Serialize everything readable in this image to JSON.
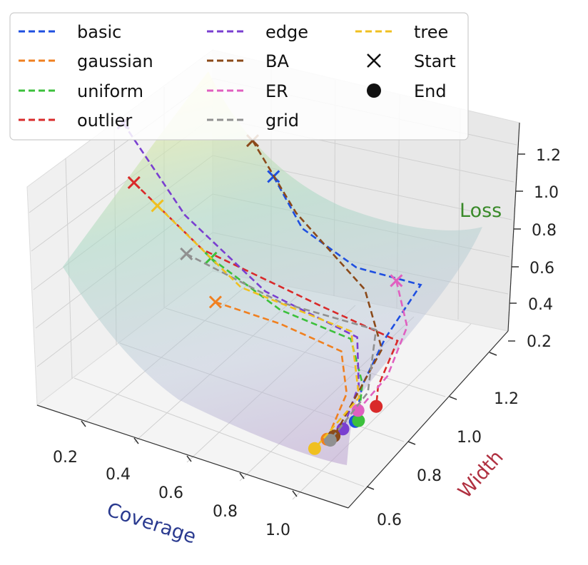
{
  "chart_data": {
    "type": "3d-line-on-surface",
    "xlabel": "Coverage",
    "ylabel": "Width",
    "zlabel": "Loss",
    "xticks": [
      "0.2",
      "0.4",
      "0.6",
      "0.8",
      "1.0"
    ],
    "yticks": [
      "0.6",
      "0.8",
      "1.0",
      "1.2"
    ],
    "zticks": [
      "0.2",
      "0.4",
      "0.6",
      "0.8",
      "1.0",
      "1.2"
    ],
    "xlim": [
      0.1,
      1.1
    ],
    "ylim": [
      0.5,
      1.35
    ],
    "zlim": [
      0.2,
      1.3
    ],
    "legend_position": "top-left",
    "legend_columns": 3,
    "colors": {
      "xlabel": "#2a3a8f",
      "ylabel": "#b03040",
      "zlabel": "#3a8a2a",
      "surface_top": "#f2f0a0",
      "surface_mid": "#a9d8c4",
      "surface_low": "#bfb2d6"
    },
    "legend": [
      {
        "label": "basic",
        "kind": "line",
        "color": "#1f4fe0"
      },
      {
        "label": "gaussian",
        "kind": "line",
        "color": "#f08020"
      },
      {
        "label": "uniform",
        "kind": "line",
        "color": "#3cc03c"
      },
      {
        "label": "outlier",
        "kind": "line",
        "color": "#d92a2a"
      },
      {
        "label": "edge",
        "kind": "line",
        "color": "#7a3fd0"
      },
      {
        "label": "BA",
        "kind": "line",
        "color": "#8b4a1a"
      },
      {
        "label": "ER",
        "kind": "line",
        "color": "#e060c0"
      },
      {
        "label": "grid",
        "kind": "line",
        "color": "#909090"
      },
      {
        "label": "tree",
        "kind": "line",
        "color": "#f0c020"
      },
      {
        "label": "Start",
        "kind": "x-marker",
        "color": "#111111"
      },
      {
        "label": "End",
        "kind": "dot-marker",
        "color": "#111111"
      }
    ],
    "series": [
      {
        "name": "basic",
        "color": "#1f4fe0",
        "points": [
          [
            0.5,
            1.05,
            1.02
          ],
          [
            0.6,
            1.05,
            0.8
          ],
          [
            0.75,
            1.1,
            0.62
          ],
          [
            0.9,
            1.2,
            0.5
          ],
          [
            0.88,
            1.05,
            0.37
          ],
          [
            0.9,
            0.9,
            0.3
          ],
          [
            0.94,
            0.8,
            0.24
          ]
        ]
      },
      {
        "name": "gaussian",
        "color": "#f08020",
        "points": [
          [
            0.45,
            0.85,
            0.55
          ],
          [
            0.62,
            0.92,
            0.45
          ],
          [
            0.8,
            0.95,
            0.37
          ],
          [
            0.88,
            0.85,
            0.3
          ],
          [
            0.91,
            0.7,
            0.24
          ]
        ]
      },
      {
        "name": "uniform",
        "color": "#3cc03c",
        "points": [
          [
            0.4,
            0.9,
            0.7
          ],
          [
            0.6,
            0.95,
            0.48
          ],
          [
            0.8,
            1.0,
            0.38
          ],
          [
            0.9,
            0.9,
            0.31
          ],
          [
            0.95,
            0.8,
            0.25
          ]
        ]
      },
      {
        "name": "outlier",
        "color": "#d92a2a",
        "points": [
          [
            0.2,
            0.8,
            1.1
          ],
          [
            0.4,
            0.85,
            0.8
          ],
          [
            0.7,
            1.0,
            0.5
          ],
          [
            0.92,
            1.05,
            0.38
          ],
          [
            0.95,
            0.9,
            0.32
          ],
          [
            0.97,
            0.86,
            0.27
          ]
        ]
      },
      {
        "name": "edge",
        "color": "#7a3fd0",
        "points": [
          [
            0.1,
            0.9,
            1.25
          ],
          [
            0.3,
            0.92,
            0.85
          ],
          [
            0.55,
            0.95,
            0.55
          ],
          [
            0.82,
            1.0,
            0.4
          ],
          [
            0.9,
            0.88,
            0.32
          ],
          [
            0.93,
            0.75,
            0.25
          ]
        ]
      },
      {
        "name": "BA",
        "color": "#8b4a1a",
        "points": [
          [
            0.4,
            1.1,
            1.1
          ],
          [
            0.55,
            1.1,
            0.8
          ],
          [
            0.78,
            1.1,
            0.52
          ],
          [
            0.9,
            1.0,
            0.38
          ],
          [
            0.92,
            0.72,
            0.24
          ]
        ]
      },
      {
        "name": "ER",
        "color": "#e060c0",
        "points": [
          [
            0.85,
            1.15,
            0.55
          ],
          [
            0.92,
            1.1,
            0.4
          ],
          [
            0.95,
            0.95,
            0.32
          ],
          [
            0.93,
            0.83,
            0.26
          ]
        ]
      },
      {
        "name": "grid",
        "color": "#909090",
        "points": [
          [
            0.35,
            0.85,
            0.75
          ],
          [
            0.6,
            0.95,
            0.52
          ],
          [
            0.85,
            1.05,
            0.4
          ],
          [
            0.93,
            0.88,
            0.3
          ],
          [
            0.92,
            0.7,
            0.24
          ]
        ]
      },
      {
        "name": "tree",
        "color": "#f0c020",
        "points": [
          [
            0.25,
            0.85,
            0.95
          ],
          [
            0.5,
            0.9,
            0.6
          ],
          [
            0.8,
            1.0,
            0.42
          ],
          [
            0.92,
            0.85,
            0.3
          ],
          [
            0.9,
            0.65,
            0.24
          ]
        ]
      }
    ]
  }
}
